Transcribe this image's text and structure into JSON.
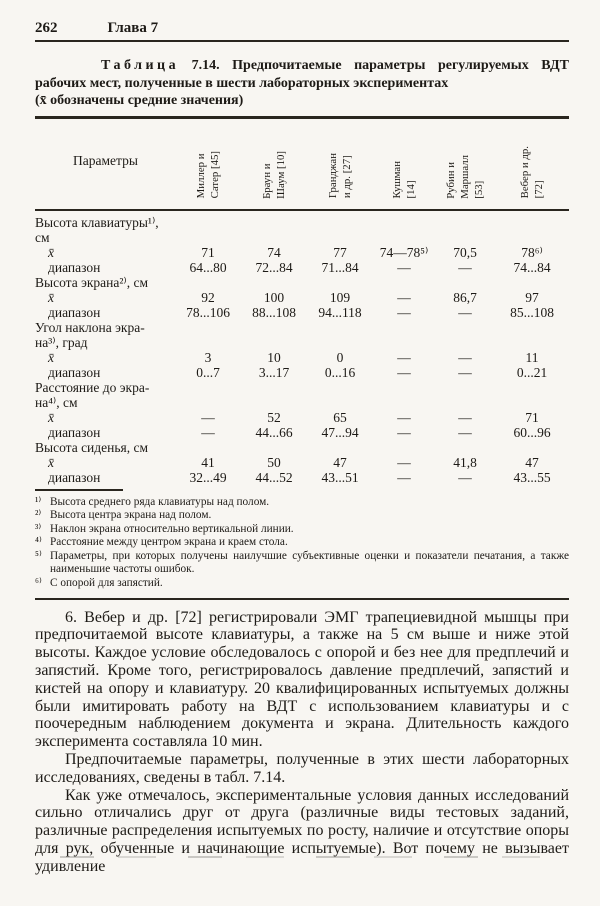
{
  "header": {
    "page_number": "262",
    "chapter_title": "Глава 7"
  },
  "caption": {
    "label_word": "Таблица",
    "label_num": "7.14.",
    "text": "Предпочитаемые параметры регулируемых ВДТ рабочих мест, полученные в шести лабораторных экспериментах",
    "note": "(x̄ обозначены средние значения)"
  },
  "table": {
    "param_header": "Параметры",
    "mean_label": "x̄",
    "range_label": "диапазон",
    "columns": [
      "Миллер и\nСатер [45]",
      "Браун и\nШаум [10]",
      "Гранджан\nи др. [27]",
      "Кушман\n[14]",
      "Рубин и\nМаршалл\n[53]",
      "Вебер и др.\n[72]"
    ],
    "groups": [
      {
        "label": "Высота клавиатуры¹⁾,\nсм",
        "mean": [
          "71",
          "74",
          "77",
          "74—78⁵⁾",
          "70,5",
          "78⁶⁾"
        ],
        "range": [
          "64...80",
          "72...84",
          "71...84",
          "—",
          "—",
          "74...84"
        ]
      },
      {
        "label": "Высота экрана²⁾, см",
        "mean": [
          "92",
          "100",
          "109",
          "—",
          "86,7",
          "97"
        ],
        "range": [
          "78...106",
          "88...108",
          "94...118",
          "—",
          "—",
          "85...108"
        ]
      },
      {
        "label": "Угол наклона экра-\nна³⁾, град",
        "mean": [
          "3",
          "10",
          "0",
          "—",
          "—",
          "11"
        ],
        "range": [
          "0...7",
          "3...17",
          "0...16",
          "—",
          "—",
          "0...21"
        ]
      },
      {
        "label": "Расстояние до экра-\nна⁴⁾, см",
        "mean": [
          "—",
          "52",
          "65",
          "—",
          "—",
          "71"
        ],
        "range": [
          "—",
          "44...66",
          "47...94",
          "—",
          "—",
          "60...96"
        ]
      },
      {
        "label": "Высота сиденья, см",
        "mean": [
          "41",
          "50",
          "47",
          "—",
          "41,8",
          "47"
        ],
        "range": [
          "32...49",
          "44...52",
          "43...51",
          "—",
          "—",
          "43...55"
        ]
      }
    ],
    "footnotes": [
      {
        "marker": "¹⁾",
        "text": "Высота среднего ряда клавиатуры над полом."
      },
      {
        "marker": "²⁾",
        "text": "Высота центра экрана над полом."
      },
      {
        "marker": "³⁾",
        "text": "Наклон экрана относительно вертикальной линии."
      },
      {
        "marker": "⁴⁾",
        "text": "Расстояние между центром экрана и краем стола."
      },
      {
        "marker": "⁵⁾",
        "text": "Параметры, при которых получены наилучшие субъективные оценки и показатели печатания, а также наименьшие частоты ошибок."
      },
      {
        "marker": "⁶⁾",
        "text": "С опорой для запястий."
      }
    ]
  },
  "body": {
    "paragraphs": [
      "6. Вебер и др. [72] регистрировали ЭМГ трапециевидной мышцы при предпочитаемой высоте клавиатуры, а также на 5 см выше и ниже этой высоты. Каждое условие обследовалось с опорой и без нее для предплечий и запястий. Кроме того, регистрировалось давление предплечий, запястий и кистей на опору и клавиатуру. 20 квалифицированных испытуемых должны были имитировать работу на ВДТ с использованием клавиатуры и с поочередным наблюдением документа и экрана. Длительность каждого эксперимента составляла 10 мин.",
      "Предпочитаемые параметры, полученные в этих шести лабораторных исследованиях, сведены в табл. 7.14.",
      "Как уже отмечалось, экспериментальные условия данных исследований сильно отличались друг от друга (различные виды тестовых заданий, различные распределения испытуемых по росту, наличие и отсутствие опоры для рук, обученные и начинающие испытуемые). Вот почему не вызывает удивление"
    ]
  }
}
